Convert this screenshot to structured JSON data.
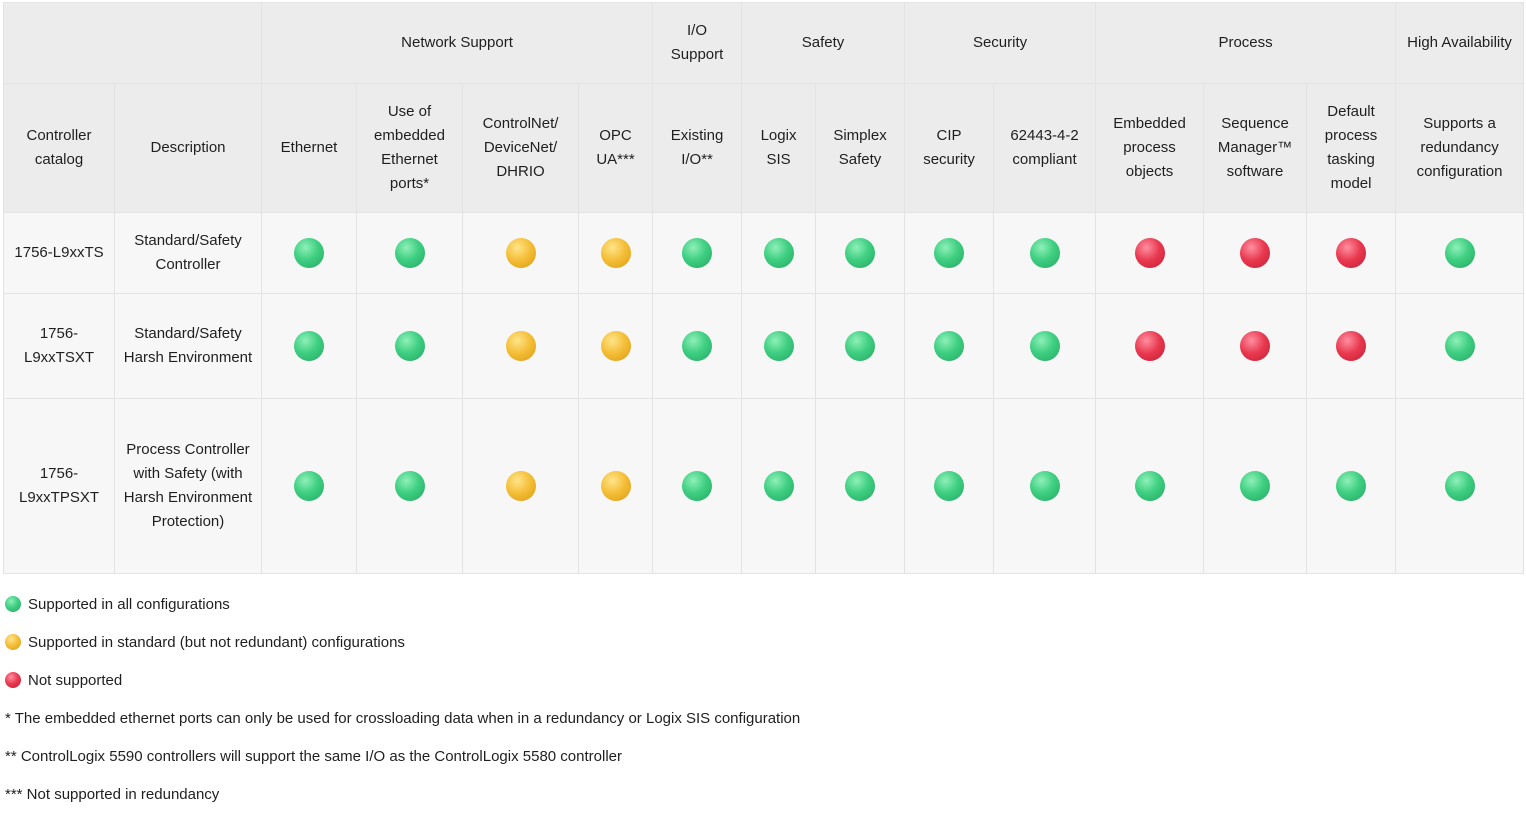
{
  "header": {
    "groups": [
      "",
      "Network Support",
      "I/O Support",
      "Safety",
      "Security",
      "Process",
      "High Availability"
    ],
    "columns": [
      "Controller catalog",
      "Description",
      "Ethernet",
      "Use of embedded Ethernet ports*",
      "ControlNet/ DeviceNet/ DHRIO",
      "OPC UA***",
      "Existing I/O**",
      "Logix SIS",
      "Simplex Safety",
      "CIP security",
      "62443-4-2 compliant",
      "Embedded process objects",
      "Sequence Manager™ software",
      "Default process tasking model",
      "Supports a redundancy configuration"
    ]
  },
  "rows": [
    {
      "catalog": "1756-L9xxTS",
      "description": "Standard/Safety Controller",
      "status": [
        "green",
        "green",
        "yellow",
        "yellow",
        "green",
        "green",
        "green",
        "green",
        "green",
        "red",
        "red",
        "red",
        "green"
      ]
    },
    {
      "catalog": "1756-L9xxTSXT",
      "description": "Standard/Safety Harsh Environment",
      "status": [
        "green",
        "green",
        "yellow",
        "yellow",
        "green",
        "green",
        "green",
        "green",
        "green",
        "red",
        "red",
        "red",
        "green"
      ]
    },
    {
      "catalog": "1756-L9xxTPSXT",
      "description": "Process Controller with Safety (with Harsh Environment Protection)",
      "status": [
        "green",
        "green",
        "yellow",
        "yellow",
        "green",
        "green",
        "green",
        "green",
        "green",
        "green",
        "green",
        "green",
        "green"
      ]
    }
  ],
  "legend": {
    "green": "Supported in all configurations",
    "yellow": "Supported in standard (but not redundant) configurations",
    "red": "Not supported"
  },
  "notes": [
    "* The embedded ethernet ports can only be used for crossloading data when in a redundancy or Logix SIS configuration",
    "** ControlLogix 5590 controllers will support the same I/O as the ControlLogix 5580 controller",
    "*** Not supported in redundancy"
  ],
  "colors": {
    "green": "#3fcf82",
    "yellow": "#f4bd36",
    "red": "#e8384f",
    "header_bg": "#ececec",
    "cell_bg": "#f7f7f7"
  }
}
